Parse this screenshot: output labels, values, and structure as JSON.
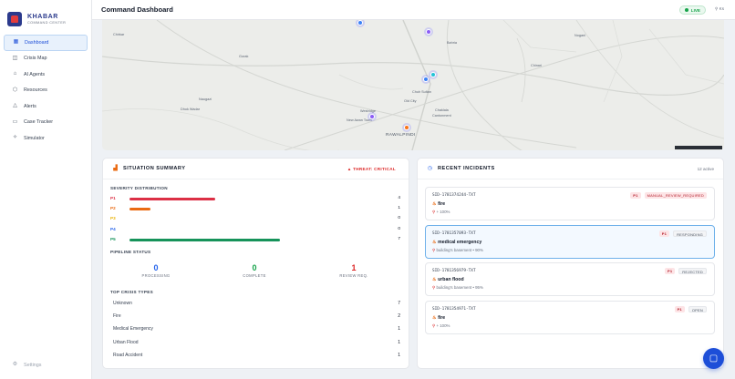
{
  "app": {
    "name": "KHABAR",
    "subtitle": "COMMAND CENTER"
  },
  "sidebar": {
    "items": [
      {
        "label": "Dashboard",
        "icon": "grid-icon",
        "active": true
      },
      {
        "label": "Crisis Map",
        "icon": "map-icon"
      },
      {
        "label": "AI Agents",
        "icon": "bot-icon"
      },
      {
        "label": "Resources",
        "icon": "package-icon"
      },
      {
        "label": "Alerts",
        "icon": "bell-icon"
      },
      {
        "label": "Case Tracker",
        "icon": "clipboard-icon"
      },
      {
        "label": "Simulator",
        "icon": "spark-icon"
      }
    ],
    "settings_label": "Settings"
  },
  "header": {
    "title": "Command Dashboard",
    "live_label": "LIVE",
    "user": "Ks"
  },
  "map": {
    "labels": [
      "Chirkar",
      "Gorak",
      "Bahria",
      "Chinari",
      "Nogani",
      "Naugazi",
      "Dhok Wadar",
      "Chuh Sultan",
      "Old City",
      "Chaklala",
      "Cantonment",
      "Westridge",
      "New Awan Town",
      "RAWALPINDI"
    ]
  },
  "summary": {
    "title": "SITUATION SUMMARY",
    "threat": "THREAT: CRITICAL",
    "severity_label": "SEVERITY DISTRIBUTION",
    "severity": [
      {
        "name": "P1",
        "count": "4",
        "fraction": 0.57,
        "color": "#dc2f45"
      },
      {
        "name": "P2",
        "count": "1",
        "fraction": 0.14,
        "color": "#ea6a12"
      },
      {
        "name": "P3",
        "count": "0",
        "fraction": 0,
        "color": "#eab308"
      },
      {
        "name": "P4",
        "count": "0",
        "fraction": 0,
        "color": "#2563eb"
      },
      {
        "name": "P5",
        "count": "7",
        "fraction": 1.0,
        "color": "#16935a"
      }
    ],
    "pipeline_label": "PIPELINE STATUS",
    "pipeline": [
      {
        "value": "0",
        "label": "PROCESSING",
        "color": "#2563eb"
      },
      {
        "value": "0",
        "label": "COMPLETE",
        "color": "#16a34a"
      },
      {
        "value": "1",
        "label": "REVIEW REQ.",
        "color": "#dc2626"
      }
    ],
    "crisis_types_label": "TOP CRISIS TYPES",
    "crisis_types": [
      {
        "name": "Unknown",
        "count": "7"
      },
      {
        "name": "Fire",
        "count": "2"
      },
      {
        "name": "Medical Emergency",
        "count": "1"
      },
      {
        "name": "Urban Flood",
        "count": "1"
      },
      {
        "name": "Road Accident",
        "count": "1"
      }
    ]
  },
  "incidents": {
    "title": "RECENT INCIDENTS",
    "active_count": "12 active",
    "items": [
      {
        "id": "SID-1781374244-TXT",
        "type": "fire",
        "loc": "+ 100%",
        "priority": "P1",
        "status": "MANUAL_REVIEW_REQUIRED",
        "status_style": "red",
        "selected": false
      },
      {
        "id": "SID-1781357093-TXT",
        "type": "medical emergency",
        "loc": "building's basement • 90%",
        "priority": "P1",
        "status": "RESPONDING",
        "status_style": "gray",
        "selected": true
      },
      {
        "id": "SID-1781356979-TXT",
        "type": "urban flood",
        "loc": "building's basement • 95%",
        "priority": "P1",
        "status": "REJECTED",
        "status_style": "gray",
        "selected": false
      },
      {
        "id": "SID-1781354971-TXT",
        "type": "fire",
        "loc": "+ 100%",
        "priority": "P1",
        "status": "OPEN",
        "status_style": "gray",
        "selected": false
      }
    ]
  }
}
